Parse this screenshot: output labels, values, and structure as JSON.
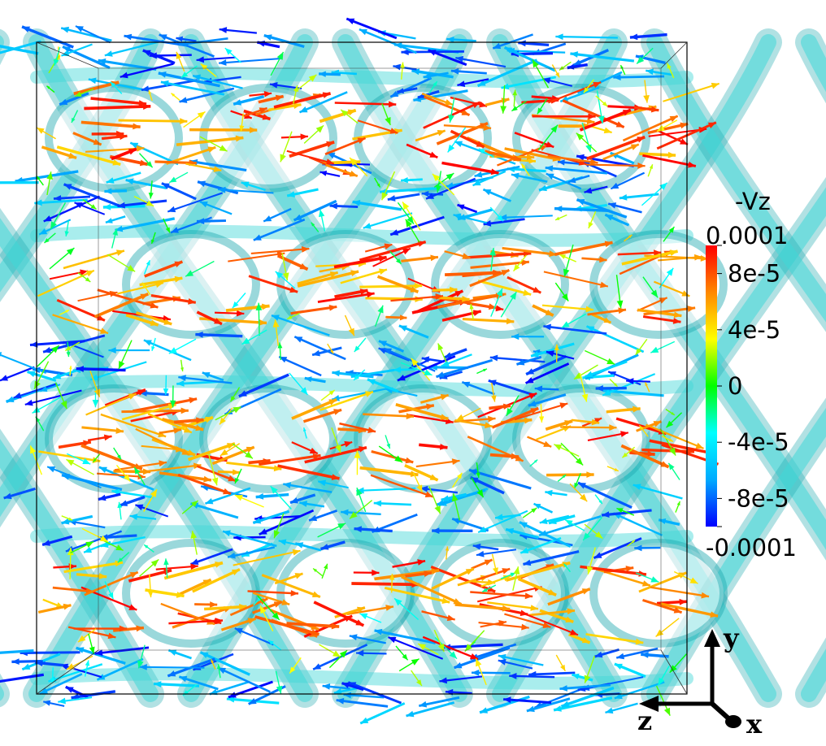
{
  "colorbar": {
    "title": "-Vz",
    "ticks": [
      {
        "value": 0.0001,
        "label": "0.0001"
      },
      {
        "value": 8e-05,
        "label": "8e-5"
      },
      {
        "value": 4e-05,
        "label": "4e-5"
      },
      {
        "value": 0,
        "label": "0"
      },
      {
        "value": -4e-05,
        "label": "-4e-5"
      },
      {
        "value": -8e-05,
        "label": "-8e-5"
      },
      {
        "value": -0.0001,
        "label": "-0.0001"
      }
    ],
    "range": [
      -0.0001,
      0.0001
    ],
    "colors": [
      "#0000ff",
      "#00aaff",
      "#00ffff",
      "#00ff00",
      "#ffff00",
      "#ff8800",
      "#ff0000"
    ]
  },
  "axes": {
    "y_label": "y",
    "z_label": "z",
    "x_label": "x"
  },
  "colors": {
    "lattice": "#40d8d8",
    "lattice_shade": "#1fa8b0",
    "frame": "#000000",
    "background": "#ffffff"
  }
}
